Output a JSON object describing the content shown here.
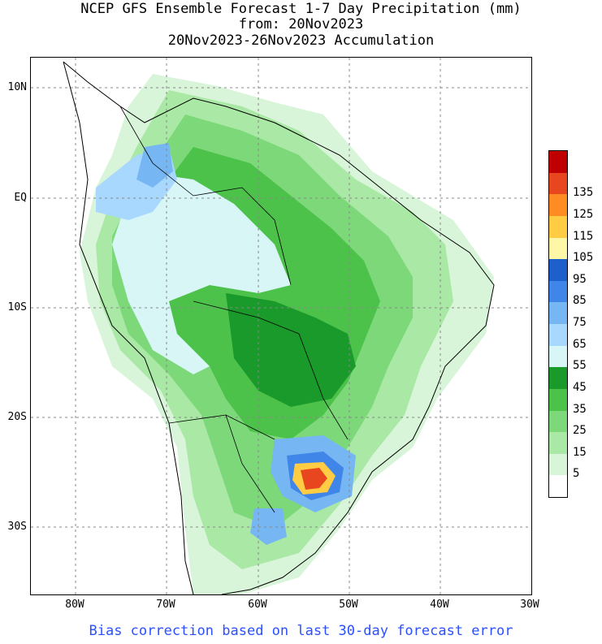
{
  "title": {
    "line1": "NCEP GFS Ensemble Forecast 1-7 Day Precipitation (mm)",
    "line2": "from: 20Nov2023",
    "line3": "20Nov2023-26Nov2023 Accumulation"
  },
  "axes": {
    "lat_labels": [
      "10N",
      "EQ",
      "10S",
      "20S",
      "30S"
    ],
    "lon_labels": [
      "80W",
      "70W",
      "60W",
      "50W",
      "40W",
      "30W"
    ]
  },
  "legend": {
    "levels": [
      "5",
      "15",
      "25",
      "35",
      "45",
      "55",
      "65",
      "75",
      "85",
      "95",
      "105",
      "115",
      "125",
      "135"
    ],
    "colors": [
      "#ffffff",
      "#d9f5d9",
      "#aae8a5",
      "#7dd87a",
      "#4cc24a",
      "#1a9a2a",
      "#d8f6f6",
      "#a9d8ff",
      "#76b6f2",
      "#3f86e8",
      "#1e5fcc",
      "#fff7a8",
      "#ffcc44",
      "#ff8c22",
      "#e8461e",
      "#c00000"
    ]
  },
  "footer": "Bias correction based on last 30-day forecast error"
}
